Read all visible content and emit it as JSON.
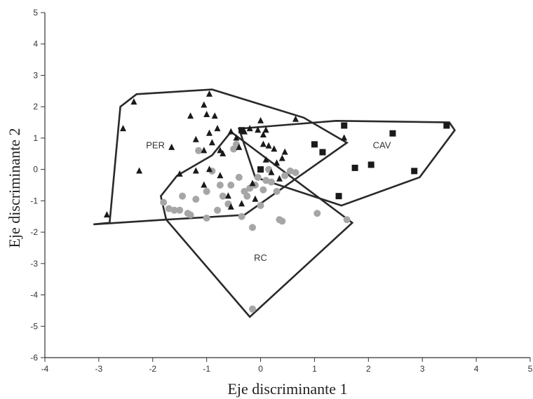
{
  "chart_data": {
    "type": "scatter",
    "title": "",
    "xlabel": "Eje discriminante 1",
    "ylabel": "Eje discriminante 2",
    "xlim": [
      -4,
      5
    ],
    "ylim": [
      -6,
      5
    ],
    "xticks": [
      -4,
      -3,
      -2,
      -1,
      0,
      1,
      2,
      3,
      4,
      5
    ],
    "yticks": [
      -6,
      -5,
      -4,
      -3,
      -2,
      -1,
      0,
      1,
      2,
      3,
      4,
      5
    ],
    "xtick_labels": [
      "-4",
      "-3",
      "-2",
      "-1",
      "0",
      "1",
      "2",
      "3",
      "4",
      "5"
    ],
    "ytick_labels": [
      "-6",
      "-5",
      "-4",
      "-3",
      "-2",
      "-1",
      "0",
      "1",
      "2",
      "3",
      "4",
      "5"
    ],
    "grid": false,
    "legend": "none",
    "series": [
      {
        "key": "per",
        "label": "PER",
        "marker": "triangle",
        "color": "#1a1a1a",
        "label_at": [
          -1.95,
          0.78
        ],
        "hull": [
          [
            -3.1,
            -1.75
          ],
          [
            -2.8,
            -1.7
          ],
          [
            -2.6,
            2.0
          ],
          [
            -2.3,
            2.4
          ],
          [
            -0.9,
            2.55
          ],
          [
            0.8,
            1.65
          ],
          [
            1.6,
            0.85
          ],
          [
            -0.3,
            -1.45
          ],
          [
            -1.75,
            -1.6
          ]
        ],
        "points": [
          [
            -2.85,
            -1.45
          ],
          [
            -2.55,
            1.3
          ],
          [
            -2.35,
            2.15
          ],
          [
            -2.25,
            -0.05
          ],
          [
            -1.65,
            0.7
          ],
          [
            -1.5,
            -0.15
          ],
          [
            -1.3,
            1.7
          ],
          [
            -1.2,
            0.95
          ],
          [
            -1.2,
            -0.05
          ],
          [
            -1.05,
            0.6
          ],
          [
            -1.05,
            -0.5
          ],
          [
            -1.05,
            2.05
          ],
          [
            -1.0,
            1.75
          ],
          [
            -0.95,
            1.15
          ],
          [
            -0.95,
            0.0
          ],
          [
            -0.95,
            2.4
          ],
          [
            -0.9,
            0.85
          ],
          [
            -0.85,
            1.7
          ],
          [
            -0.8,
            1.3
          ],
          [
            -0.75,
            0.6
          ],
          [
            -0.7,
            0.5
          ],
          [
            -0.75,
            -0.2
          ],
          [
            -0.6,
            -0.85
          ],
          [
            -0.55,
            -1.2
          ],
          [
            -0.55,
            1.2
          ],
          [
            -0.45,
            1.0
          ],
          [
            -0.4,
            0.7
          ],
          [
            -0.35,
            -1.1
          ],
          [
            -0.3,
            1.2
          ],
          [
            -0.2,
            1.3
          ],
          [
            -0.15,
            -0.45
          ],
          [
            -0.1,
            -0.95
          ],
          [
            -0.05,
            1.25
          ],
          [
            0.0,
            1.55
          ],
          [
            0.05,
            1.1
          ],
          [
            0.05,
            0.8
          ],
          [
            0.1,
            1.25
          ],
          [
            0.15,
            0.75
          ],
          [
            0.1,
            0.3
          ],
          [
            0.2,
            -0.1
          ],
          [
            0.25,
            0.65
          ],
          [
            0.3,
            0.2
          ],
          [
            0.35,
            -0.3
          ],
          [
            0.45,
            0.55
          ],
          [
            0.4,
            0.35
          ],
          [
            0.65,
            1.6
          ],
          [
            1.55,
            1.0
          ]
        ]
      },
      {
        "key": "cav",
        "label": "CAV",
        "marker": "square",
        "color": "#1a1a1a",
        "label_at": [
          2.25,
          0.78
        ],
        "hull": [
          [
            -0.4,
            1.3
          ],
          [
            1.4,
            1.55
          ],
          [
            3.5,
            1.5
          ],
          [
            3.6,
            1.25
          ],
          [
            2.95,
            -0.25
          ],
          [
            1.5,
            -1.15
          ],
          [
            -0.1,
            -0.25
          ]
        ],
        "points": [
          [
            -0.35,
            1.25
          ],
          [
            0.0,
            0.0
          ],
          [
            1.0,
            0.8
          ],
          [
            1.15,
            0.55
          ],
          [
            1.45,
            -0.85
          ],
          [
            1.55,
            1.4
          ],
          [
            1.75,
            0.05
          ],
          [
            2.05,
            0.15
          ],
          [
            2.45,
            1.15
          ],
          [
            2.85,
            -0.05
          ],
          [
            3.45,
            1.4
          ]
        ]
      },
      {
        "key": "rc",
        "label": "RC",
        "marker": "circle",
        "color": "#a6a6a6",
        "label_at": [
          0.0,
          -2.8
        ],
        "hull": [
          [
            -1.85,
            -0.85
          ],
          [
            -1.55,
            -0.2
          ],
          [
            -0.9,
            0.45
          ],
          [
            -0.55,
            1.2
          ],
          [
            1.7,
            -1.7
          ],
          [
            -0.2,
            -4.7
          ],
          [
            -1.75,
            -1.6
          ]
        ],
        "points": [
          [
            -1.8,
            -1.05
          ],
          [
            -1.7,
            -1.25
          ],
          [
            -1.6,
            -1.3
          ],
          [
            -1.5,
            -1.3
          ],
          [
            -1.45,
            -0.85
          ],
          [
            -1.35,
            -1.4
          ],
          [
            -1.3,
            -1.45
          ],
          [
            -1.2,
            -0.95
          ],
          [
            -1.15,
            0.6
          ],
          [
            -1.0,
            -1.55
          ],
          [
            -1.0,
            -0.7
          ],
          [
            -0.9,
            -0.05
          ],
          [
            -0.8,
            -1.3
          ],
          [
            -0.75,
            -0.5
          ],
          [
            -0.7,
            -0.85
          ],
          [
            -0.6,
            -1.1
          ],
          [
            -0.55,
            -0.5
          ],
          [
            -0.5,
            0.65
          ],
          [
            -0.45,
            0.8
          ],
          [
            -0.4,
            -0.25
          ],
          [
            -0.35,
            -1.5
          ],
          [
            -0.3,
            -0.7
          ],
          [
            -0.25,
            -0.85
          ],
          [
            -0.2,
            -0.6
          ],
          [
            -0.15,
            -1.85
          ],
          [
            -0.1,
            -0.5
          ],
          [
            -0.05,
            -0.25
          ],
          [
            0.0,
            -1.15
          ],
          [
            0.05,
            -0.65
          ],
          [
            0.1,
            -0.35
          ],
          [
            0.15,
            0.0
          ],
          [
            0.2,
            -0.4
          ],
          [
            0.3,
            -0.7
          ],
          [
            0.35,
            -1.6
          ],
          [
            0.4,
            -1.65
          ],
          [
            0.45,
            -0.2
          ],
          [
            0.55,
            -0.05
          ],
          [
            0.65,
            -0.1
          ],
          [
            1.05,
            -1.4
          ],
          [
            1.6,
            -1.6
          ],
          [
            -0.15,
            -4.45
          ]
        ]
      }
    ]
  }
}
